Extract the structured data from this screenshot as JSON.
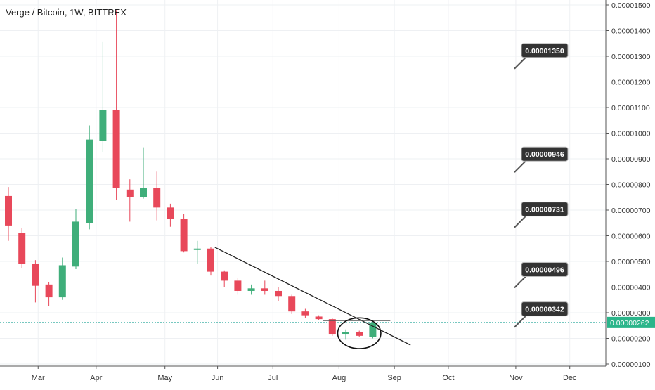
{
  "title": "Verge / Bitcoin, 1W, BITTREX",
  "colors": {
    "up": "#3fae7a",
    "down": "#e8485a",
    "grid": "#eef0f3",
    "axis": "#555555",
    "trendline": "#222222",
    "current_line": "#26a69a",
    "current_label_bg": "#2bb58a",
    "callout_bg": "#333333",
    "callout_text": "#ffffff"
  },
  "current_price": {
    "label": "0.00000262",
    "value": 2.62e-06
  },
  "callouts": [
    {
      "label": "0.00001350",
      "value": 1.35e-05
    },
    {
      "label": "0.00000946",
      "value": 9.46e-06
    },
    {
      "label": "0.00000731",
      "value": 7.31e-06
    },
    {
      "label": "0.00000496",
      "value": 4.96e-06
    },
    {
      "label": "0.00000342",
      "value": 3.42e-06
    }
  ],
  "chart_data": {
    "type": "candlestick",
    "title": "Verge / Bitcoin, 1W, BITTREX",
    "xlabel": "",
    "ylabel": "",
    "grid": true,
    "x_ticks": [
      {
        "label": "Mar",
        "week": 2.2
      },
      {
        "label": "Apr",
        "week": 6.5
      },
      {
        "label": "May",
        "week": 11.6
      },
      {
        "label": "Jun",
        "week": 15.5
      },
      {
        "label": "Jul",
        "week": 19.6
      },
      {
        "label": "Aug",
        "week": 24.5
      },
      {
        "label": "Sep",
        "week": 28.6
      },
      {
        "label": "Oct",
        "week": 32.6
      },
      {
        "label": "Nov",
        "week": 37.6
      },
      {
        "label": "Dec",
        "week": 41.6
      }
    ],
    "y_ticks": [
      "0.00001500",
      "0.00001400",
      "0.00001300",
      "0.00001200",
      "0.00001100",
      "0.00001000",
      "0.00000900",
      "0.00000800",
      "0.00000700",
      "0.00000600",
      "0.00000500",
      "0.00000400",
      "0.00000300",
      "0.00000200",
      "0.00000100"
    ],
    "y_tick_values": [
      15,
      14,
      13,
      12,
      11,
      10,
      9,
      8,
      7,
      6,
      5,
      4,
      3,
      2,
      1
    ],
    "y_unit_note": "y values below are in units of 1e-6 BTC",
    "ylim": [
      0.97,
      15.3
    ],
    "candles": [
      {
        "week": 0,
        "open": 7.55,
        "high": 7.9,
        "low": 5.8,
        "close": 6.4
      },
      {
        "week": 1,
        "open": 6.1,
        "high": 6.3,
        "low": 4.75,
        "close": 4.9
      },
      {
        "week": 2,
        "open": 4.9,
        "high": 5.05,
        "low": 3.4,
        "close": 4.05
      },
      {
        "week": 3,
        "open": 4.1,
        "high": 4.2,
        "low": 3.25,
        "close": 3.6
      },
      {
        "week": 4,
        "open": 3.6,
        "high": 5.15,
        "low": 3.5,
        "close": 4.85
      },
      {
        "week": 5,
        "open": 4.8,
        "high": 7.05,
        "low": 4.7,
        "close": 6.55
      },
      {
        "week": 6,
        "open": 6.5,
        "high": 10.3,
        "low": 6.25,
        "close": 9.75
      },
      {
        "week": 7,
        "open": 9.7,
        "high": 13.55,
        "low": 9.25,
        "close": 10.9
      },
      {
        "week": 8,
        "open": 10.9,
        "high": 14.8,
        "low": 7.4,
        "close": 7.85
      },
      {
        "week": 9,
        "open": 7.8,
        "high": 8.2,
        "low": 6.55,
        "close": 7.5
      },
      {
        "week": 10,
        "open": 7.5,
        "high": 9.45,
        "low": 7.45,
        "close": 7.85
      },
      {
        "week": 11,
        "open": 7.85,
        "high": 8.5,
        "low": 6.6,
        "close": 7.1
      },
      {
        "week": 12,
        "open": 7.1,
        "high": 7.25,
        "low": 6.35,
        "close": 6.65
      },
      {
        "week": 13,
        "open": 6.65,
        "high": 6.85,
        "low": 5.35,
        "close": 5.4
      },
      {
        "week": 14,
        "open": 5.45,
        "high": 5.8,
        "low": 4.9,
        "close": 5.5
      },
      {
        "week": 15,
        "open": 5.5,
        "high": 5.55,
        "low": 4.45,
        "close": 4.6
      },
      {
        "week": 16,
        "open": 4.6,
        "high": 4.65,
        "low": 4.0,
        "close": 4.25
      },
      {
        "week": 17,
        "open": 4.25,
        "high": 4.35,
        "low": 3.7,
        "close": 3.85
      },
      {
        "week": 18,
        "open": 3.85,
        "high": 4.1,
        "low": 3.7,
        "close": 3.95
      },
      {
        "week": 19,
        "open": 3.95,
        "high": 4.25,
        "low": 3.7,
        "close": 3.85
      },
      {
        "week": 20,
        "open": 3.85,
        "high": 4.0,
        "low": 3.45,
        "close": 3.65
      },
      {
        "week": 21,
        "open": 3.65,
        "high": 3.7,
        "low": 2.95,
        "close": 3.05
      },
      {
        "week": 22,
        "open": 3.05,
        "high": 3.15,
        "low": 2.8,
        "close": 2.9
      },
      {
        "week": 23,
        "open": 2.85,
        "high": 2.9,
        "low": 2.7,
        "close": 2.75
      },
      {
        "week": 24,
        "open": 2.75,
        "high": 2.8,
        "low": 2.1,
        "close": 2.15
      },
      {
        "week": 25,
        "open": 2.15,
        "high": 2.35,
        "low": 1.95,
        "close": 2.25
      },
      {
        "week": 26,
        "open": 2.25,
        "high": 2.3,
        "low": 2.05,
        "close": 2.1
      },
      {
        "week": 27,
        "open": 2.05,
        "high": 2.7,
        "low": 2.0,
        "close": 2.62
      }
    ],
    "annotations": [
      {
        "kind": "trendline",
        "from": {
          "week": 15.3,
          "value": 5.55
        },
        "to": {
          "week": 29.8,
          "value": 1.74
        }
      },
      {
        "kind": "hline",
        "from": {
          "week": 23.3,
          "value": 2.7
        },
        "to": {
          "week": 28.3,
          "value": 2.7
        }
      },
      {
        "kind": "ellipse",
        "center": {
          "week": 26.0,
          "value": 2.2
        },
        "rx_weeks": 1.6,
        "ry_value": 0.6
      }
    ]
  }
}
